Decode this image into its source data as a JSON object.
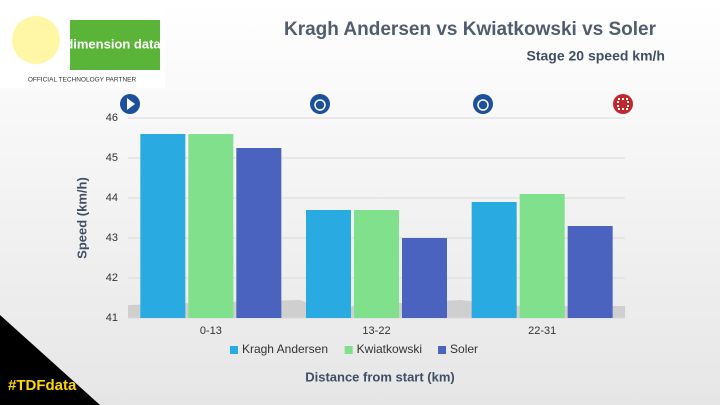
{
  "chart_data": {
    "type": "bar",
    "title": "Kragh Andersen vs Kwiatkowski vs Soler",
    "subtitle": "Stage 20 speed km/h",
    "y_label": "Speed (km/h)",
    "x_label": "Distance from start (km)",
    "categories": [
      "0-13",
      "13-22",
      "22-31"
    ],
    "series": [
      {
        "name": "Kragh Andersen",
        "color": "#29abe2",
        "values": [
          45.6,
          43.7,
          43.9
        ]
      },
      {
        "name": "Kwiatkowski",
        "color": "#80e08c",
        "values": [
          45.6,
          43.7,
          44.1
        ]
      },
      {
        "name": "Soler",
        "color": "#4a63bf",
        "values": [
          45.25,
          43.0,
          43.3
        ]
      }
    ],
    "ylim": [
      41,
      46
    ],
    "yticks": [
      41,
      42,
      43,
      44,
      45,
      46
    ],
    "grid": true,
    "legend": "bottom"
  },
  "branding": {
    "partner": "dimension data",
    "partner_tagline": "OFFICIAL TECHNOLOGY PARTNER",
    "hashtag": "#TDFdata"
  }
}
